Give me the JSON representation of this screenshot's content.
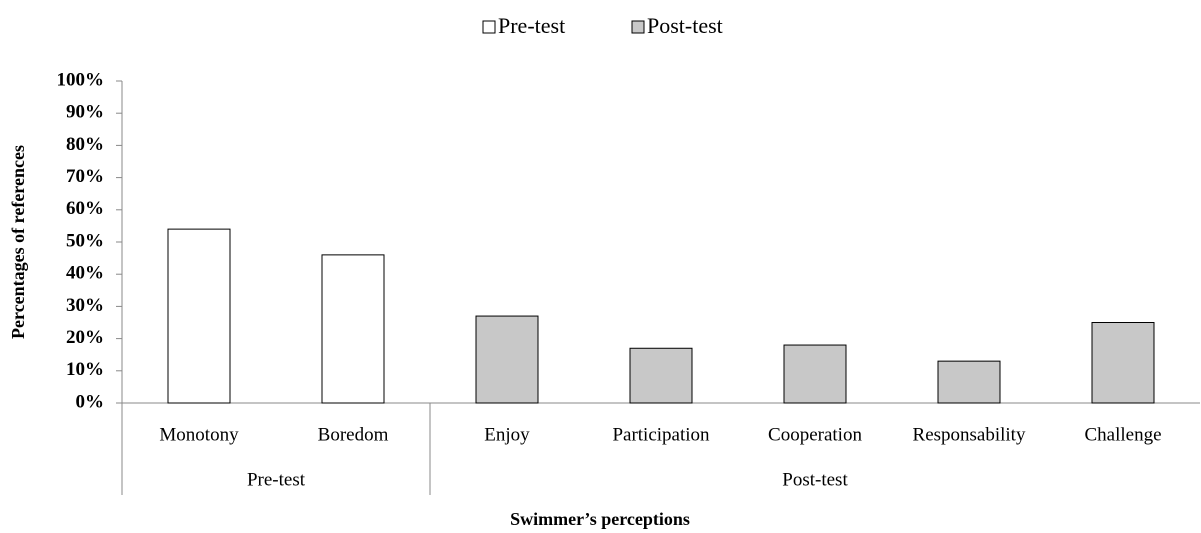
{
  "chart_data": {
    "type": "bar",
    "y_label": "Percentages of references",
    "x_label": "Swimmer’s perceptions",
    "groups": [
      {
        "name": "Pre-test",
        "categories": [
          "Monotony",
          "Boredom"
        ]
      },
      {
        "name": "Post-test",
        "categories": [
          "Enjoy",
          "Participation",
          "Cooperation",
          "Responsability",
          "Challenge"
        ]
      }
    ],
    "series": [
      {
        "name": "Pre-test",
        "color": "#ffffff",
        "values": [
          54,
          46,
          null,
          null,
          null,
          null,
          null
        ]
      },
      {
        "name": "Post-test",
        "color": "#c8c8c8",
        "values": [
          null,
          null,
          27,
          17,
          18,
          13,
          25
        ]
      }
    ],
    "ylim": [
      0,
      100
    ],
    "yticks": [
      {
        "value": 0,
        "label": "0%"
      },
      {
        "value": 10,
        "label": "10%"
      },
      {
        "value": 20,
        "label": "20%"
      },
      {
        "value": 30,
        "label": "30%"
      },
      {
        "value": 40,
        "label": "40%"
      },
      {
        "value": 50,
        "label": "50%"
      },
      {
        "value": 60,
        "label": "60%"
      },
      {
        "value": 70,
        "label": "70%"
      },
      {
        "value": 80,
        "label": "80%"
      },
      {
        "value": 90,
        "label": "90%"
      },
      {
        "value": 100,
        "label": "100%"
      }
    ]
  }
}
